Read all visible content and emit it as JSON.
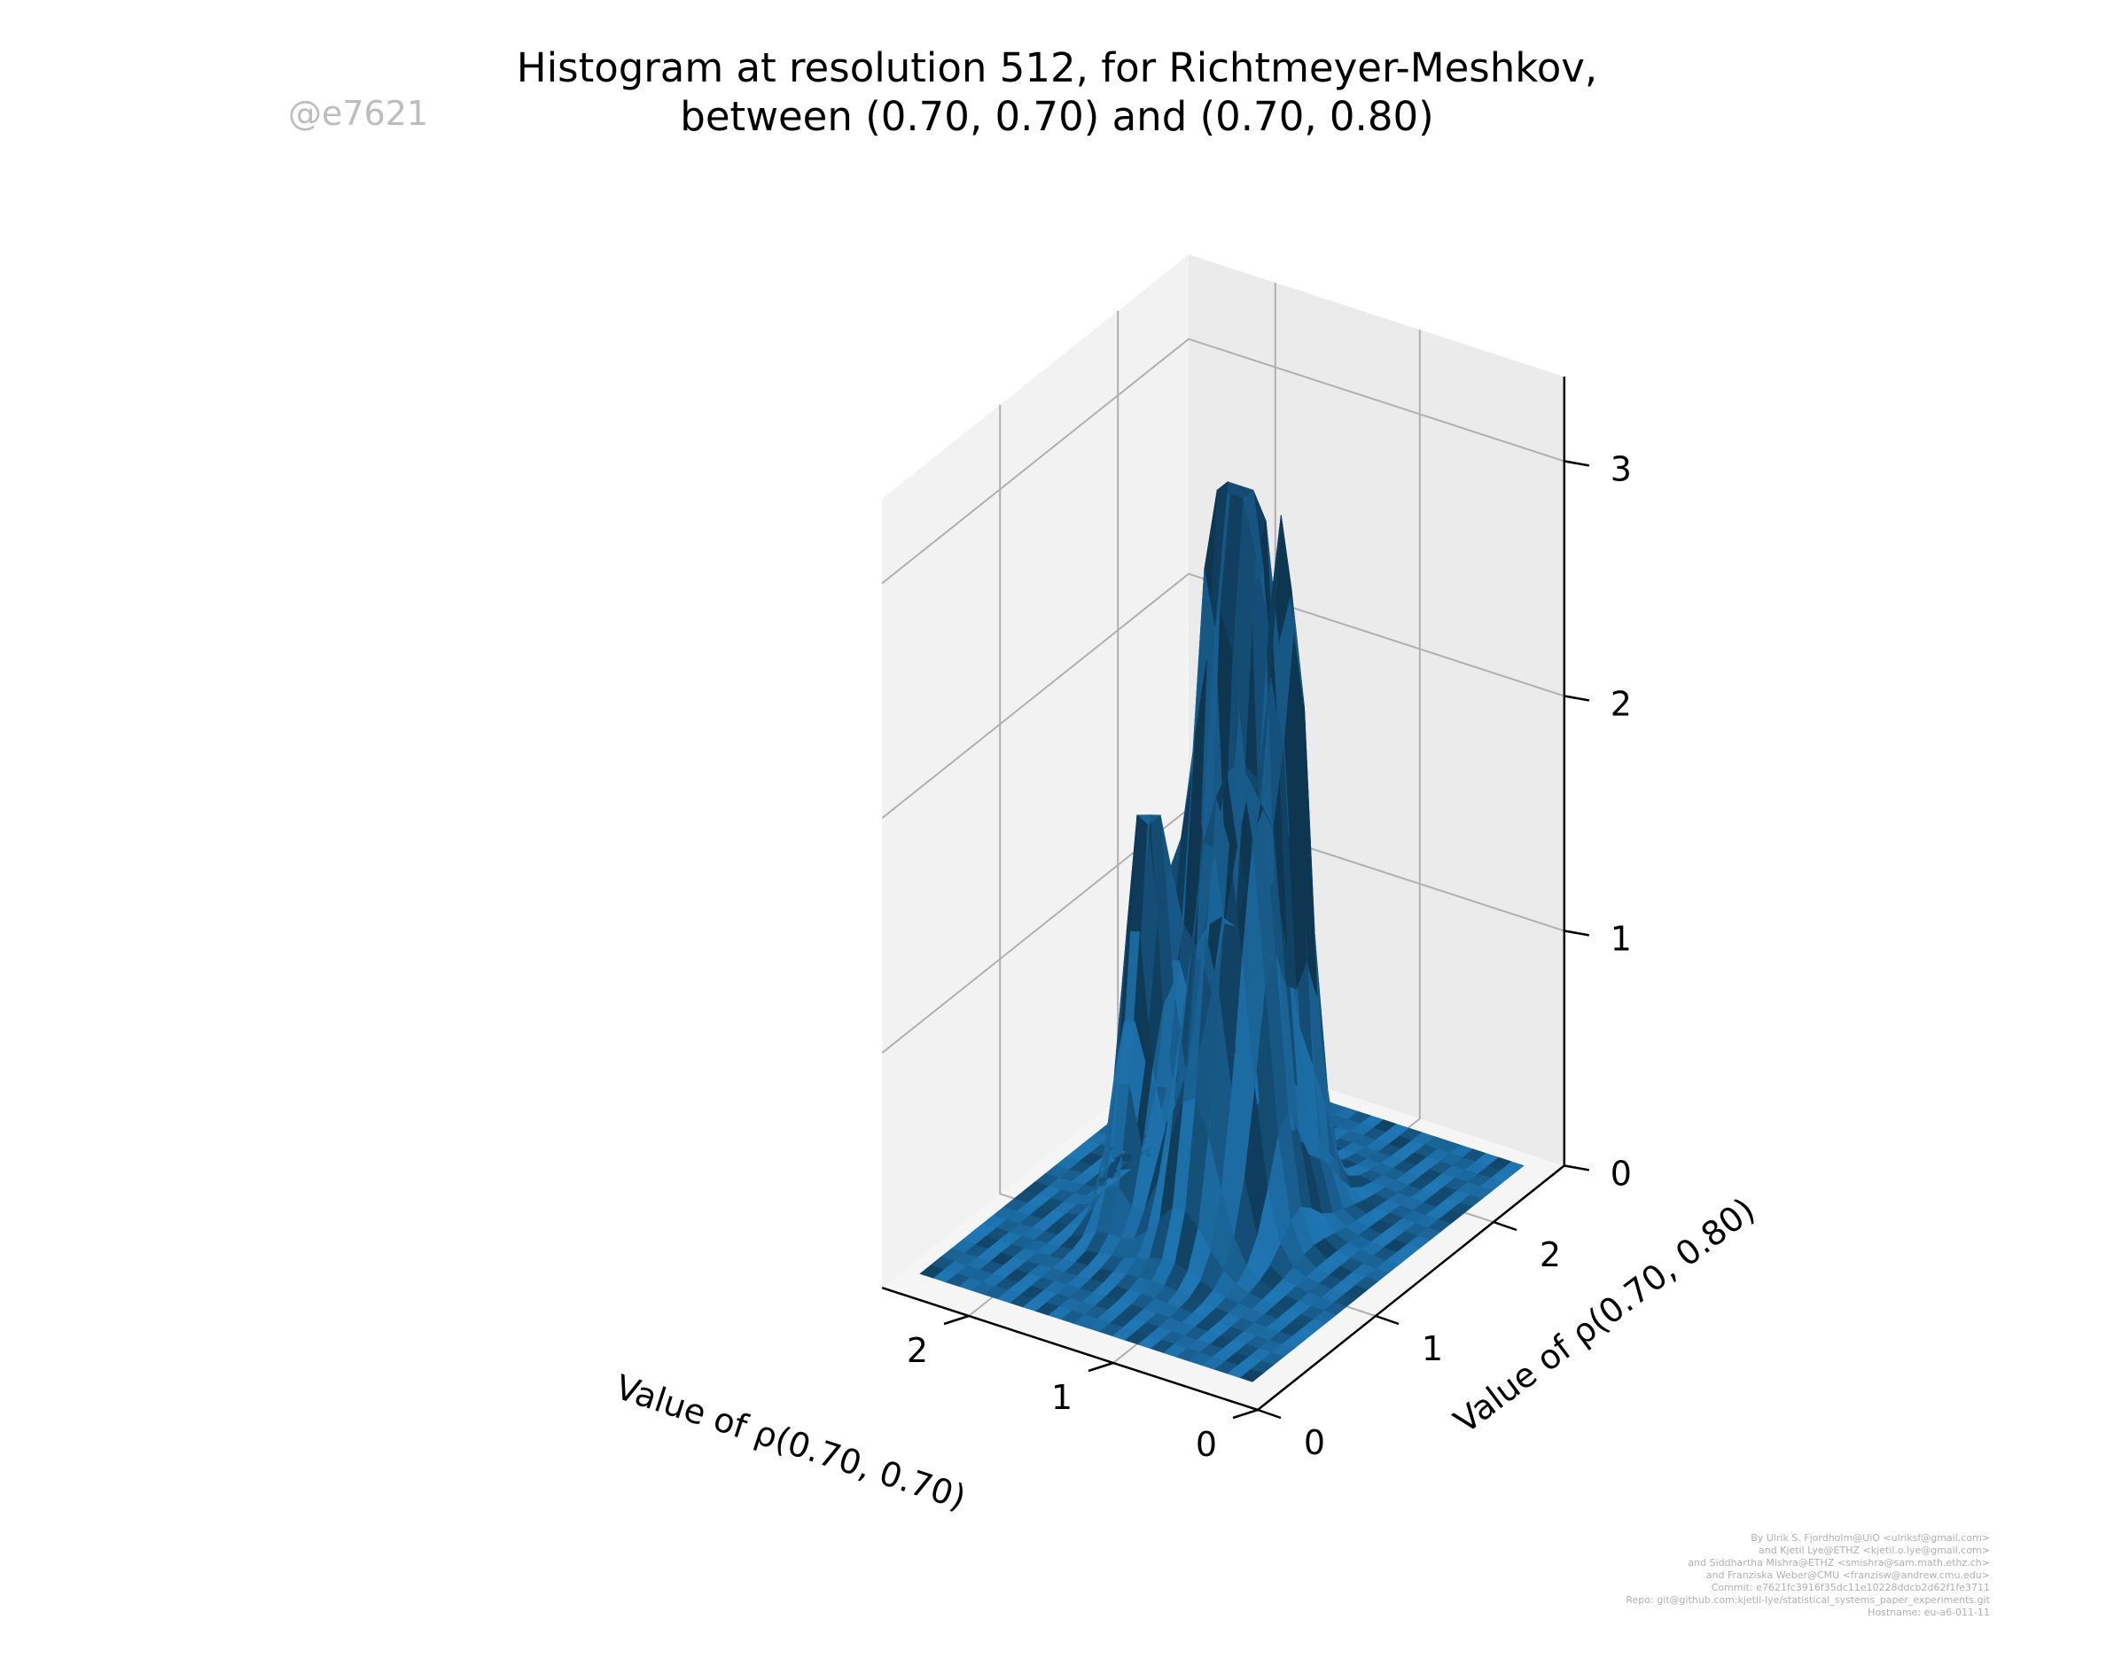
{
  "title": {
    "line1": "Histogram at resolution 512, for Richtmeyer-Meshkov,",
    "line2": "between (0.70, 0.70) and (0.70, 0.80)"
  },
  "watermark": "@e7621",
  "credits": [
    "By Ulrik S. Fjordholm@UiO <ulriksf@gmail.com>",
    "and Kjetil Lye@ETHZ <kjetil.o.lye@gmail.com>",
    "and Siddhartha Mishra@ETHZ <smishra@sam.math.ethz.ch>",
    "and Franziska Weber@CMU <franzisw@andrew.cmu.edu>",
    "Commit: e7621fc3916f35dc11e10228ddcb2d62f1fe3711",
    "Repo: git@github.com:kjetil-lye/statistical_systems_paper_experiments.git",
    "Hostname: eu-a6-011-11"
  ],
  "colors": {
    "surface": "#1f77b4",
    "pane_left": "#f2f2f2",
    "pane_right": "#ebebeb",
    "pane_floor": "#f5f5f5",
    "grid": "#b0b0b0"
  },
  "chart_data": {
    "type": "surface",
    "title": "Histogram at resolution 512, for Richtmeyer-Meshkov, between (0.70, 0.70) and (0.70, 0.80)",
    "xlabel": "Value of ρ(0.70, 0.70)",
    "ylabel": "Value of ρ(0.70, 0.80)",
    "zlabel": "",
    "xlim": [
      0,
      2.6
    ],
    "ylim": [
      0,
      2.6
    ],
    "zlim": [
      0,
      3
    ],
    "x_ticks": [
      "0",
      "1",
      "2"
    ],
    "y_ticks": [
      "0",
      "1",
      "2"
    ],
    "z_ticks": [
      "0",
      "1",
      "2",
      "3"
    ],
    "grid": true,
    "description_of_values": "density peaks near x≈1.3, y≈1.4",
    "peaks": [
      {
        "x": 1.05,
        "y": 1.55,
        "z": 2.6
      },
      {
        "x": 1.35,
        "y": 1.6,
        "z": 2.6
      },
      {
        "x": 1.55,
        "y": 1.55,
        "z": 2.4
      },
      {
        "x": 1.75,
        "y": 1.2,
        "z": 1.8
      },
      {
        "x": 1.0,
        "y": 1.25,
        "z": 1.2
      },
      {
        "x": 1.2,
        "y": 1.1,
        "z": 1.6
      }
    ]
  }
}
